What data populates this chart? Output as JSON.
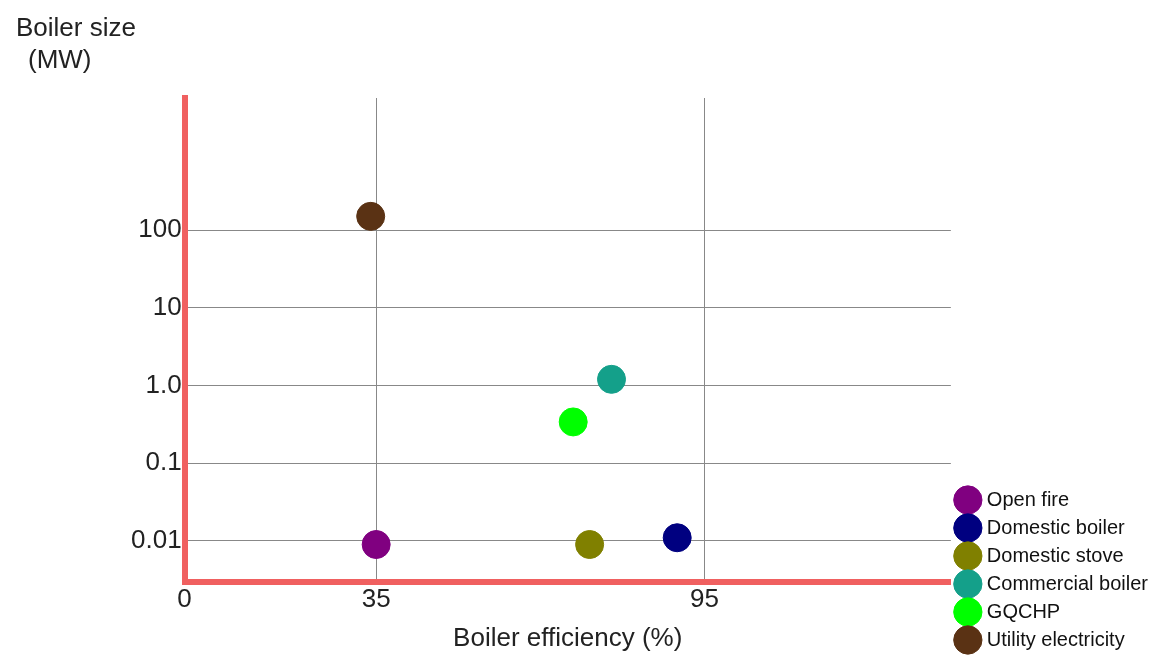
{
  "chart_data": {
    "type": "scatter",
    "xlabel": "Boiler efficiency (%)",
    "ylabel": "Boiler size (MW)",
    "log": "y",
    "grid": true,
    "legend": "bottom right",
    "marker": "circle",
    "xlim": [
      0,
      140
    ],
    "xticks": [
      0,
      35,
      95
    ],
    "ylim": [
      0.003,
      5000
    ],
    "yticks": [
      0.01,
      0.1,
      {
        "value": 1,
        "label": "1.0"
      },
      10,
      100
    ],
    "series": [
      {
        "name": "Open fire",
        "color": "#800080",
        "x": [
          35
        ],
        "values": [
          0.009
        ]
      },
      {
        "name": "Domestic boiler",
        "color": "#000080",
        "x": [
          90
        ],
        "values": [
          0.011
        ]
      },
      {
        "name": "Domestic stove",
        "color": "#808000",
        "x": [
          74
        ],
        "values": [
          0.009
        ]
      },
      {
        "name": "Commercial boiler",
        "color": "#14a08a",
        "x": [
          78
        ],
        "values": [
          1.2
        ]
      },
      {
        "name": "GQCHP",
        "color": "#00ff00",
        "x": [
          71
        ],
        "values": [
          0.34
        ]
      },
      {
        "name": "Utility electricity",
        "color": "#5a3214",
        "x": [
          34
        ],
        "values": [
          150
        ]
      }
    ]
  }
}
